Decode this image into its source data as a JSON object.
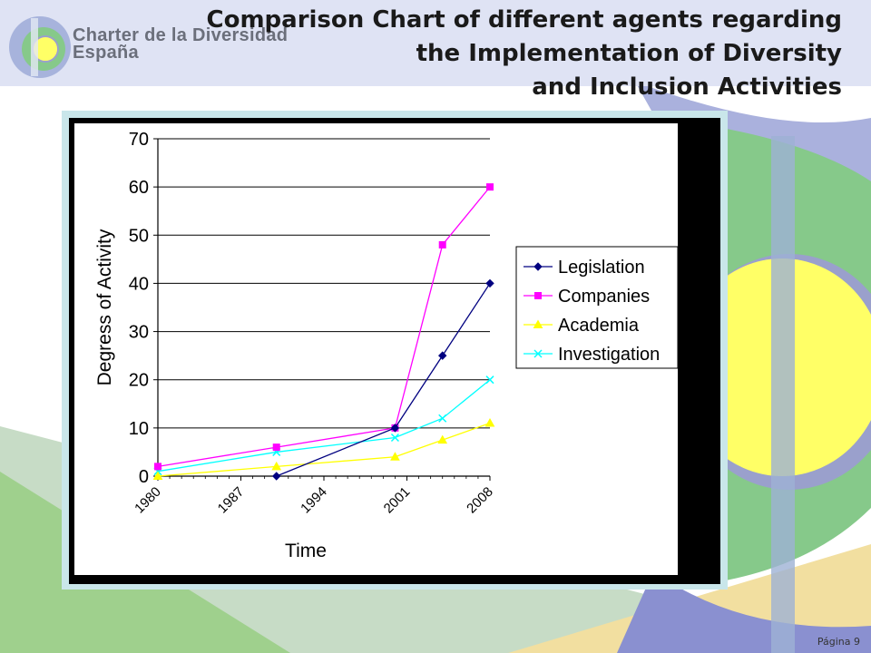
{
  "header": {
    "logo_line1": "Charter de la Diversidad",
    "logo_line2": "España",
    "title_lines": [
      "Comparison Chart of different agents regarding",
      "the Implementation of Diversity",
      "and Inclusion Activities"
    ]
  },
  "footer": {
    "page_label": "Página 9"
  },
  "colors": {
    "legislation": "#000080",
    "companies": "#ff00ff",
    "academia": "#ffff00",
    "investigation": "#00ffff"
  },
  "chart_data": {
    "type": "line",
    "title": "",
    "xlabel": "Time",
    "ylabel": "Degress of Activity",
    "xlim": [
      1980,
      2008
    ],
    "ylim": [
      0,
      70
    ],
    "xticks": [
      "1980",
      "1987",
      "1994",
      "2001",
      "2008"
    ],
    "yticks": [
      0,
      10,
      20,
      30,
      40,
      50,
      60,
      70
    ],
    "grid": "horizontal",
    "legend_position": "right",
    "series": [
      {
        "name": "Legislation",
        "marker": "diamond",
        "color": "#000080",
        "points": [
          [
            1990,
            0
          ],
          [
            2000,
            10
          ],
          [
            2004,
            25
          ],
          [
            2008,
            40
          ]
        ]
      },
      {
        "name": "Companies",
        "marker": "square",
        "color": "#ff00ff",
        "points": [
          [
            1980,
            2
          ],
          [
            1990,
            6
          ],
          [
            2000,
            10
          ],
          [
            2004,
            48
          ],
          [
            2008,
            60
          ]
        ]
      },
      {
        "name": "Academia",
        "marker": "triangle",
        "color": "#ffff00",
        "points": [
          [
            1980,
            0
          ],
          [
            1990,
            2
          ],
          [
            2000,
            4
          ],
          [
            2004,
            7.5
          ],
          [
            2008,
            11
          ]
        ]
      },
      {
        "name": "Investigation",
        "marker": "x",
        "color": "#00ffff",
        "points": [
          [
            1980,
            1
          ],
          [
            1990,
            5
          ],
          [
            2000,
            8
          ],
          [
            2004,
            12
          ],
          [
            2008,
            20
          ]
        ]
      }
    ]
  }
}
